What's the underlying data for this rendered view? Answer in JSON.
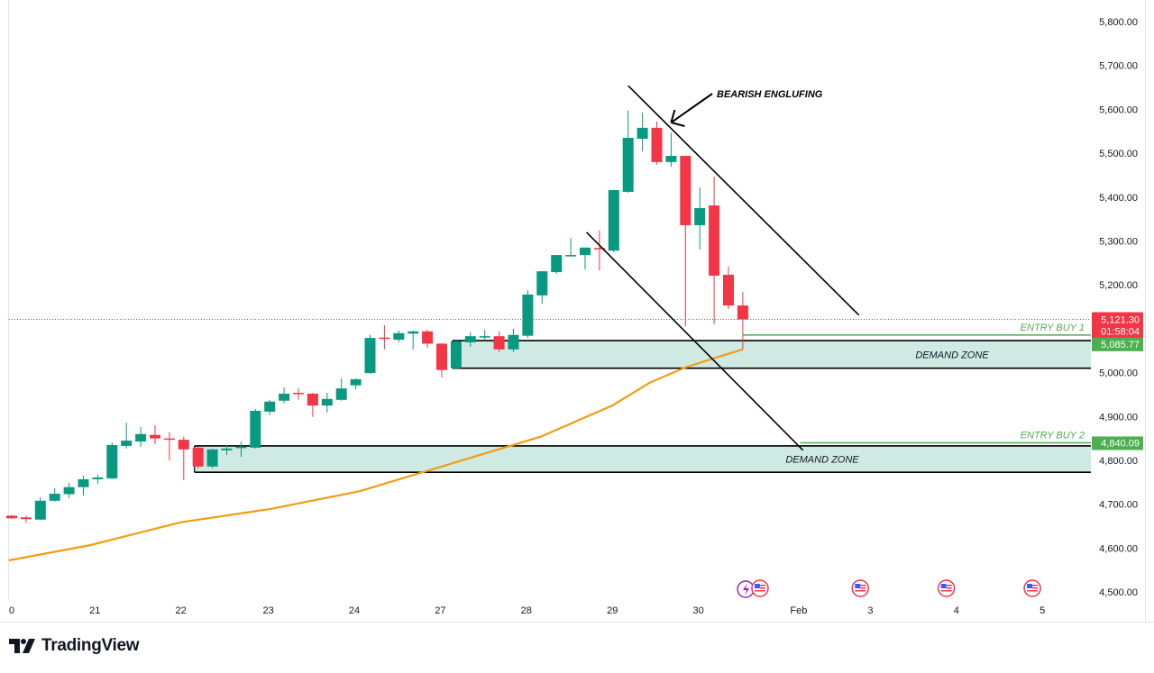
{
  "brand": {
    "name": "TradingView"
  },
  "colors": {
    "up": "#089981",
    "down": "#f23645",
    "ma": "#f39c12",
    "zone_fill": "#cfe9e3",
    "entry": "#4caf50",
    "current": "#f23645"
  },
  "chart_data": {
    "type": "candlestick",
    "ylim": [
      4480,
      5850
    ],
    "yticks": [
      5800,
      5700,
      5600,
      5500,
      5400,
      5300,
      5200,
      5000,
      4900,
      4800,
      4700,
      4600,
      4500
    ],
    "ytick_labels": [
      "5,800.00",
      "5,700.00",
      "5,600.00",
      "5,500.00",
      "5,400.00",
      "5,300.00",
      "5,200.00",
      "5,000.00",
      "4,900.00",
      "4,800.00",
      "4,700.00",
      "4,600.00",
      "4,500.00"
    ],
    "xticks": [
      {
        "index": 1,
        "label": "0"
      },
      {
        "index": 6.8,
        "label": "21"
      },
      {
        "index": 12.8,
        "label": "22"
      },
      {
        "index": 18.9,
        "label": "23"
      },
      {
        "index": 24.9,
        "label": "24"
      },
      {
        "index": 30.9,
        "label": "27"
      },
      {
        "index": 36.9,
        "label": "28"
      },
      {
        "index": 42.9,
        "label": "29"
      },
      {
        "index": 48.9,
        "label": "30"
      },
      {
        "index": 55.9,
        "label": "Feb"
      },
      {
        "index": 60.9,
        "label": "3"
      },
      {
        "index": 66.9,
        "label": "4"
      },
      {
        "index": 72.9,
        "label": "5"
      }
    ],
    "candles": [
      [
        4674,
        4676,
        4666,
        4668
      ],
      [
        4670,
        4674,
        4658,
        4666
      ],
      [
        4665,
        4716,
        4664,
        4708
      ],
      [
        4708,
        4737,
        4706,
        4724
      ],
      [
        4723,
        4749,
        4714,
        4739
      ],
      [
        4739,
        4765,
        4720,
        4757
      ],
      [
        4757,
        4767,
        4747,
        4761
      ],
      [
        4759,
        4841,
        4757,
        4835
      ],
      [
        4833,
        4886,
        4827,
        4845
      ],
      [
        4843,
        4876,
        4831,
        4860
      ],
      [
        4858,
        4880,
        4837,
        4850
      ],
      [
        4850,
        4864,
        4800,
        4848
      ],
      [
        4847,
        4854,
        4755,
        4825
      ],
      [
        4829,
        4831,
        4782,
        4786
      ],
      [
        4786,
        4827,
        4782,
        4825
      ],
      [
        4823,
        4835,
        4812,
        4827
      ],
      [
        4829,
        4843,
        4808,
        4831
      ],
      [
        4829,
        4917,
        4827,
        4913
      ],
      [
        4911,
        4938,
        4903,
        4934
      ],
      [
        4936,
        4966,
        4930,
        4952
      ],
      [
        4954,
        4964,
        4938,
        4952
      ],
      [
        4952,
        4954,
        4899,
        4925
      ],
      [
        4925,
        4954,
        4909,
        4940
      ],
      [
        4938,
        4987,
        4936,
        4964
      ],
      [
        4971,
        4987,
        4962,
        4985
      ],
      [
        4999,
        5086,
        4997,
        5079
      ],
      [
        5080,
        5108,
        5053,
        5078
      ],
      [
        5075,
        5096,
        5069,
        5090
      ],
      [
        5089,
        5096,
        5053,
        5094
      ],
      [
        5094,
        5098,
        5057,
        5066
      ],
      [
        5066,
        5067,
        4989,
        5006
      ],
      [
        5010,
        5075,
        5008,
        5071
      ],
      [
        5069,
        5092,
        5059,
        5083
      ],
      [
        5082,
        5098,
        5073,
        5083
      ],
      [
        5083,
        5094,
        5047,
        5053
      ],
      [
        5053,
        5100,
        5047,
        5086
      ],
      [
        5084,
        5188,
        5079,
        5178
      ],
      [
        5176,
        5231,
        5157,
        5231
      ],
      [
        5229,
        5268,
        5225,
        5268
      ],
      [
        5267,
        5307,
        5264,
        5268
      ],
      [
        5268,
        5285,
        5235,
        5285
      ],
      [
        5284,
        5324,
        5233,
        5282
      ],
      [
        5278,
        5416,
        5274,
        5416
      ],
      [
        5412,
        5597,
        5410,
        5535
      ],
      [
        5533,
        5593,
        5504,
        5558
      ],
      [
        5558,
        5572,
        5474,
        5480
      ],
      [
        5480,
        5547,
        5469,
        5494
      ],
      [
        5494,
        5494,
        5106,
        5336
      ],
      [
        5336,
        5422,
        5281,
        5375
      ],
      [
        5381,
        5447,
        5110,
        5221
      ],
      [
        5223,
        5242,
        5145,
        5153
      ],
      [
        5153,
        5184,
        5053,
        5121.3
      ]
    ],
    "moving_average": [
      [
        0.8,
        4572
      ],
      [
        6.5,
        4607
      ],
      [
        12.8,
        4659
      ],
      [
        19,
        4689
      ],
      [
        25.3,
        4730
      ],
      [
        31.6,
        4792
      ],
      [
        37.9,
        4854
      ],
      [
        42.9,
        4925
      ],
      [
        45.5,
        4977
      ],
      [
        48,
        5012
      ],
      [
        50.5,
        5038
      ],
      [
        52,
        5053
      ]
    ],
    "current_price": {
      "value": 5121.3,
      "label": "5,121.30",
      "countdown": "01:58:04"
    },
    "zones": [
      {
        "label": "DEMAND ZONE",
        "top": 5073,
        "bottom": 5010,
        "start": 32
      },
      {
        "label": "DEMAND ZONE",
        "top": 4833,
        "bottom": 4773,
        "start": 14
      }
    ],
    "entries": [
      {
        "label": "ENTRY BUY 1",
        "price": 5085.77,
        "price_label": "5,085.77",
        "start": 52
      },
      {
        "label": "ENTRY BUY 2",
        "price": 4840.09,
        "price_label": "4,840.09",
        "start": 56
      }
    ],
    "trendlines": [
      {
        "from": [
          44,
          5654
        ],
        "to": [
          60.1,
          5131
        ]
      },
      {
        "from": [
          41.1,
          5320
        ],
        "to": [
          56.2,
          4823
        ]
      }
    ],
    "annotation": {
      "text": "BEARISH ENGLUFING",
      "target": [
        47,
        5570
      ]
    },
    "events": [
      52.2,
      53.2,
      60.2,
      66.2,
      72.2
    ]
  }
}
